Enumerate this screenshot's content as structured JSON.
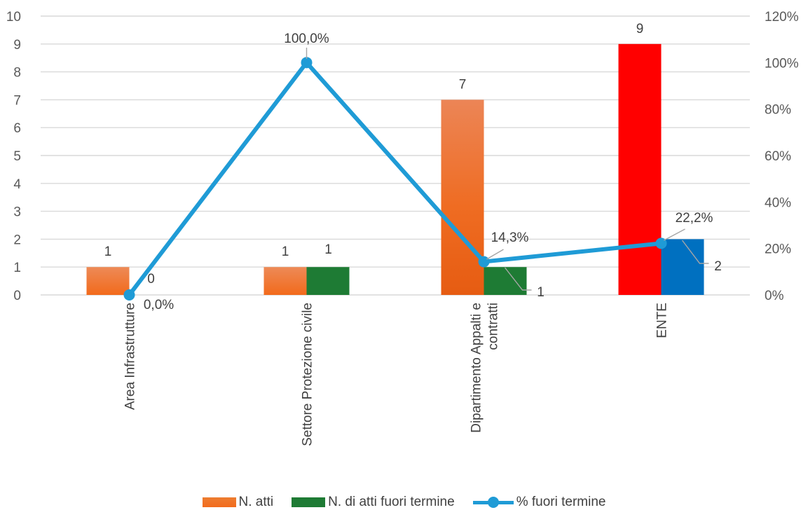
{
  "chart_data": {
    "type": "bar",
    "categories": [
      "Area Infrastrutture",
      "Settore Protezione civile",
      "Dipartimento Appalti e contratti",
      "ENTE"
    ],
    "category_lines": [
      [
        "Area Infrastrutture"
      ],
      [
        "Settore Protezione civile"
      ],
      [
        "Dipartimento Appalti e",
        "contratti"
      ],
      [
        "ENTE"
      ]
    ],
    "series": [
      {
        "name": "N. atti",
        "type": "bar",
        "axis": "left",
        "values": [
          1,
          1,
          7,
          9
        ],
        "labels": [
          "1",
          "1",
          "7",
          "9"
        ],
        "color": "#ed7d31",
        "highlight": {
          "category_index": 3,
          "color": "#ff0000"
        }
      },
      {
        "name": "N. di atti fuori termine",
        "type": "bar",
        "axis": "left",
        "values": [
          0,
          1,
          1,
          2
        ],
        "labels": [
          "0",
          "1",
          "1",
          "2"
        ],
        "color": "#1e7b34",
        "highlight": {
          "category_index": 3,
          "color": "#0070c0"
        }
      },
      {
        "name": "%  fuori termine",
        "type": "line",
        "axis": "right",
        "values": [
          0.0,
          100.0,
          14.3,
          22.2
        ],
        "labels": [
          "0,0%",
          "100,0%",
          "14,3%",
          "22,2%"
        ],
        "color": "#1f9bd6"
      }
    ],
    "y_left": {
      "min": 0,
      "max": 10,
      "ticks": [
        "0",
        "1",
        "2",
        "3",
        "4",
        "5",
        "6",
        "7",
        "8",
        "9",
        "10"
      ]
    },
    "y_right": {
      "min": 0,
      "max": 120,
      "ticks": [
        "0%",
        "20%",
        "40%",
        "60%",
        "80%",
        "100%",
        "120%"
      ]
    },
    "grid": true,
    "legend_position": "bottom"
  }
}
